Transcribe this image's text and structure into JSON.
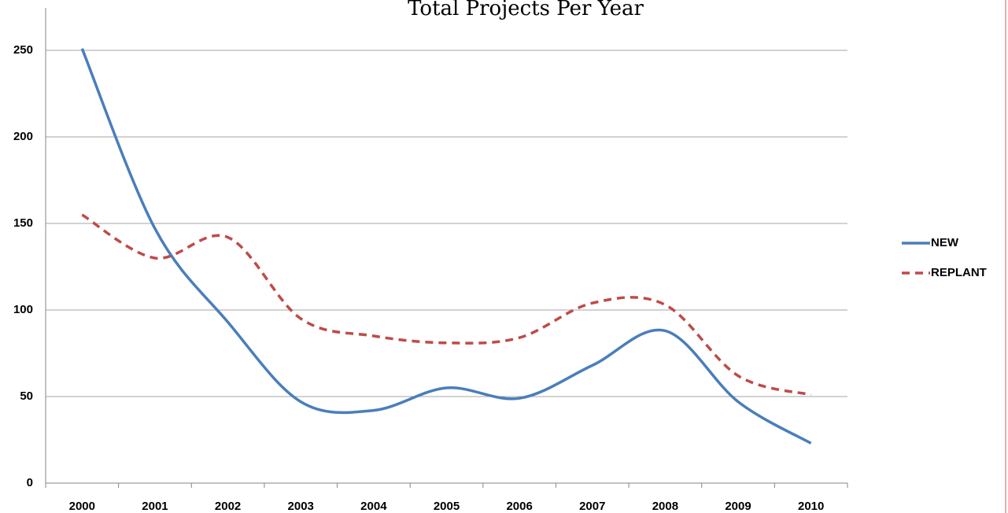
{
  "chart_data": {
    "type": "line",
    "title": "Total Projects Per Year",
    "categories": [
      "2000",
      "2001",
      "2002",
      "2003",
      "2004",
      "2005",
      "2006",
      "2007",
      "2008",
      "2009",
      "2010"
    ],
    "series": [
      {
        "name": "NEW",
        "color": "#4a7ebb",
        "line_style": "solid",
        "values": [
          251,
          147,
          93,
          47,
          42,
          55,
          49,
          68,
          88,
          47,
          23
        ]
      },
      {
        "name": "REPLANT",
        "color": "#be4b48",
        "line_style": "dashed",
        "values": [
          155,
          130,
          142,
          95,
          85,
          81,
          84,
          104,
          103,
          62,
          51
        ]
      }
    ],
    "ylim": [
      0,
      250
    ],
    "yticks": [
      0,
      50,
      100,
      150,
      200,
      250
    ],
    "grid": true,
    "smooth": true,
    "legend": "right"
  }
}
